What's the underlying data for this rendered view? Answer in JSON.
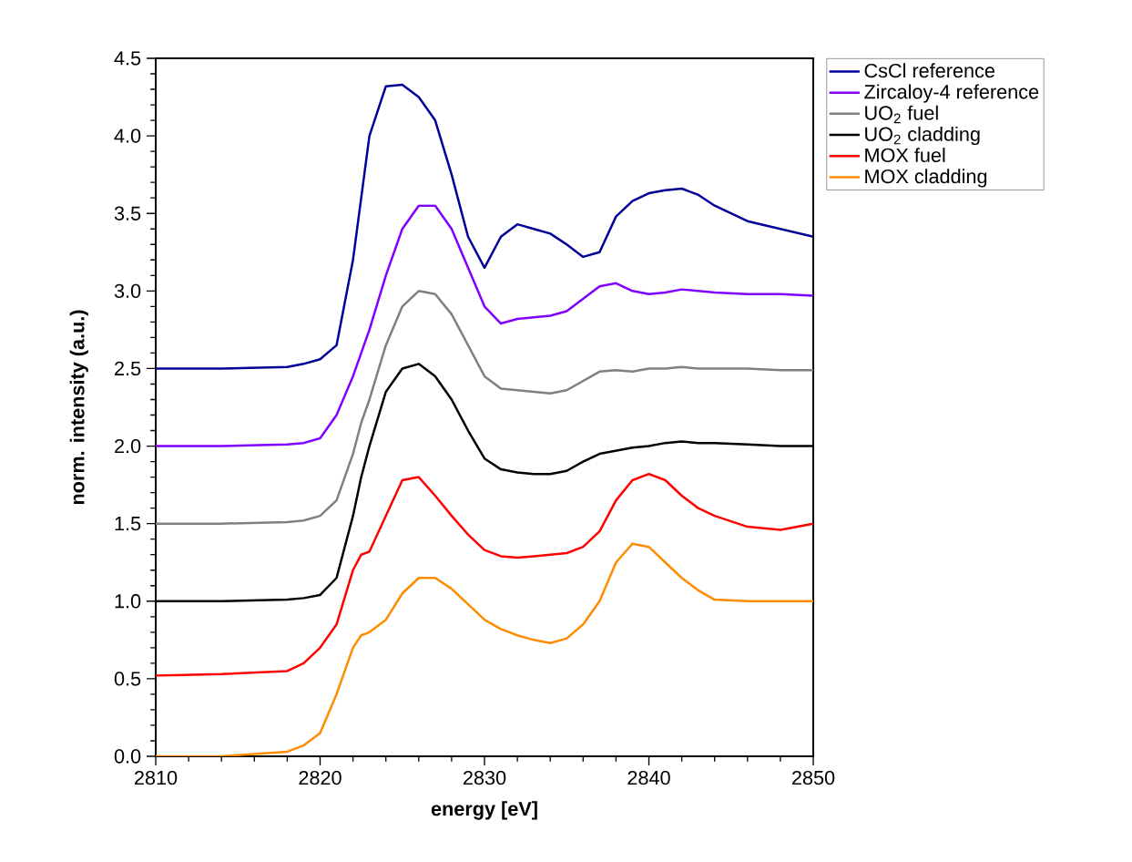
{
  "chart_data": {
    "type": "line",
    "xlabel": "energy [eV]",
    "ylabel": "norm. intensity (a.u.)",
    "x": [
      2810,
      2814,
      2818,
      2819,
      2820,
      2821,
      2822,
      2822.5,
      2823,
      2824,
      2825,
      2826,
      2827,
      2828,
      2829,
      2830,
      2831,
      2832,
      2833,
      2834,
      2835,
      2836,
      2837,
      2838,
      2839,
      2840,
      2841,
      2842,
      2843,
      2844,
      2846,
      2848,
      2850
    ],
    "series": [
      {
        "name": "CsCl reference",
        "color": "#000099",
        "values": [
          2.5,
          2.5,
          2.51,
          2.53,
          2.56,
          2.65,
          3.2,
          3.6,
          4.0,
          4.32,
          4.33,
          4.25,
          4.1,
          3.75,
          3.35,
          3.15,
          3.35,
          3.43,
          3.4,
          3.37,
          3.3,
          3.22,
          3.25,
          3.48,
          3.58,
          3.63,
          3.65,
          3.66,
          3.62,
          3.55,
          3.45,
          3.4,
          3.35
        ]
      },
      {
        "name": "Zircaloy-4 reference",
        "color": "#8000ff",
        "values": [
          2.0,
          2.0,
          2.01,
          2.02,
          2.05,
          2.2,
          2.45,
          2.6,
          2.75,
          3.1,
          3.4,
          3.55,
          3.55,
          3.4,
          3.15,
          2.9,
          2.79,
          2.82,
          2.83,
          2.84,
          2.87,
          2.95,
          3.03,
          3.05,
          3.0,
          2.98,
          2.99,
          3.01,
          3.0,
          2.99,
          2.98,
          2.98,
          2.97
        ]
      },
      {
        "name": "UO$_{2}$ fuel",
        "color": "#808080",
        "values": [
          1.5,
          1.5,
          1.51,
          1.52,
          1.55,
          1.65,
          1.95,
          2.15,
          2.3,
          2.65,
          2.9,
          3.0,
          2.98,
          2.85,
          2.65,
          2.45,
          2.37,
          2.36,
          2.35,
          2.34,
          2.36,
          2.42,
          2.48,
          2.49,
          2.48,
          2.5,
          2.5,
          2.51,
          2.5,
          2.5,
          2.5,
          2.49,
          2.49
        ]
      },
      {
        "name": "UO$_{2}$ cladding",
        "color": "#000000",
        "values": [
          1.0,
          1.0,
          1.01,
          1.02,
          1.04,
          1.15,
          1.55,
          1.8,
          2.0,
          2.35,
          2.5,
          2.53,
          2.45,
          2.3,
          2.1,
          1.92,
          1.85,
          1.83,
          1.82,
          1.82,
          1.84,
          1.9,
          1.95,
          1.97,
          1.99,
          2.0,
          2.02,
          2.03,
          2.02,
          2.02,
          2.01,
          2.0,
          2.0
        ]
      },
      {
        "name": "MOX fuel",
        "color": "#ff0000",
        "values": [
          0.52,
          0.53,
          0.55,
          0.6,
          0.7,
          0.85,
          1.2,
          1.3,
          1.32,
          1.55,
          1.78,
          1.8,
          1.68,
          1.55,
          1.43,
          1.33,
          1.29,
          1.28,
          1.29,
          1.3,
          1.31,
          1.35,
          1.45,
          1.65,
          1.78,
          1.82,
          1.78,
          1.68,
          1.6,
          1.55,
          1.48,
          1.46,
          1.5
        ]
      },
      {
        "name": "MOX cladding",
        "color": "#ff8c00",
        "values": [
          0.0,
          0.0,
          0.03,
          0.07,
          0.15,
          0.4,
          0.7,
          0.78,
          0.8,
          0.88,
          1.05,
          1.15,
          1.15,
          1.08,
          0.98,
          0.88,
          0.82,
          0.78,
          0.75,
          0.73,
          0.76,
          0.85,
          1.0,
          1.25,
          1.37,
          1.35,
          1.25,
          1.15,
          1.07,
          1.01,
          1.0,
          1.0,
          1.0
        ]
      }
    ],
    "xlim": [
      2810,
      2850
    ],
    "xticks": [
      2810,
      2820,
      2830,
      2840,
      2850
    ],
    "ylim": [
      0.0,
      4.5
    ],
    "yticks": [
      {
        "value": 0,
        "label": "0.0"
      },
      {
        "value": 0.5,
        "label": "0.5"
      },
      {
        "value": 1,
        "label": "1.0"
      },
      {
        "value": 1.5,
        "label": "1.5"
      },
      {
        "value": 2,
        "label": "2.0"
      },
      {
        "value": 2.5,
        "label": "2.5"
      },
      {
        "value": 3,
        "label": "3.0"
      },
      {
        "value": 3.5,
        "label": "3.5"
      },
      {
        "value": 4,
        "label": "4.0"
      },
      {
        "value": 4.5,
        "label": "4.5"
      }
    ],
    "legend": "top right",
    "grid": false,
    "line_style": "solid"
  }
}
